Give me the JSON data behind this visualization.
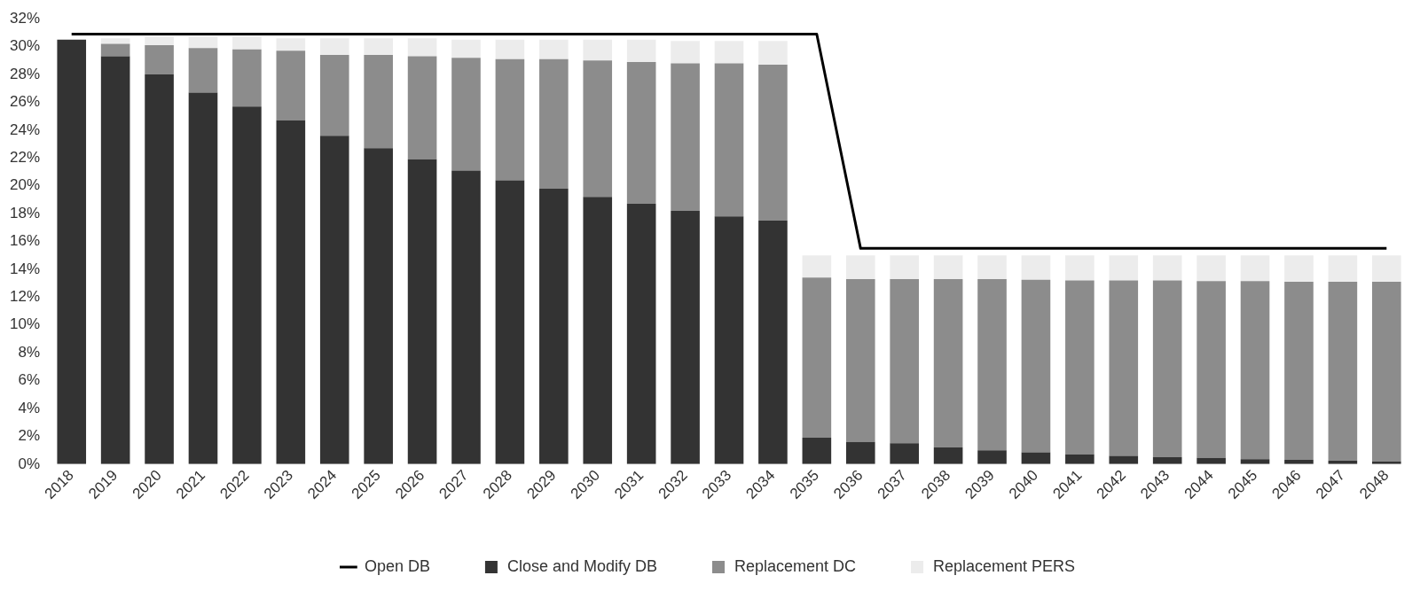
{
  "chart_data": {
    "type": "bar",
    "stacked": true,
    "categories": [
      "2018",
      "2019",
      "2020",
      "2021",
      "2022",
      "2023",
      "2024",
      "2025",
      "2026",
      "2027",
      "2028",
      "2029",
      "2030",
      "2031",
      "2032",
      "2033",
      "2034",
      "2035",
      "2036",
      "2037",
      "2038",
      "2039",
      "2040",
      "2041",
      "2042",
      "2043",
      "2044",
      "2045",
      "2046",
      "2047",
      "2048"
    ],
    "series": [
      {
        "name": "Close and Modify DB",
        "color": "#333333",
        "values": [
          30.5,
          29.3,
          28.0,
          26.7,
          25.7,
          24.7,
          23.6,
          22.7,
          21.9,
          21.1,
          20.4,
          19.8,
          19.2,
          18.7,
          18.2,
          17.8,
          17.5,
          1.9,
          1.6,
          1.5,
          1.2,
          1.0,
          0.85,
          0.7,
          0.6,
          0.5,
          0.45,
          0.35,
          0.3,
          0.25,
          0.2
        ]
      },
      {
        "name": "Replacement DC",
        "color": "#8c8c8c",
        "values": [
          0,
          0.9,
          2.1,
          3.2,
          4.1,
          5.0,
          5.8,
          6.7,
          7.4,
          8.1,
          8.7,
          9.3,
          9.8,
          10.2,
          10.6,
          11.0,
          11.2,
          11.5,
          11.7,
          11.8,
          12.1,
          12.3,
          12.4,
          12.5,
          12.6,
          12.7,
          12.7,
          12.8,
          12.8,
          12.85,
          12.9
        ]
      },
      {
        "name": "Replacement PERS",
        "color": "#ececec",
        "values": [
          0,
          0.4,
          0.6,
          0.8,
          0.9,
          0.9,
          1.2,
          1.2,
          1.3,
          1.3,
          1.4,
          1.4,
          1.5,
          1.6,
          1.6,
          1.6,
          1.7,
          1.6,
          1.7,
          1.7,
          1.7,
          1.7,
          1.75,
          1.8,
          1.8,
          1.8,
          1.85,
          1.85,
          1.9,
          1.9,
          1.9
        ]
      },
      {
        "name": "Open DB",
        "type": "line",
        "color": "#000000",
        "values": [
          30.9,
          30.9,
          30.9,
          30.9,
          30.9,
          30.9,
          30.9,
          30.9,
          30.9,
          30.9,
          30.9,
          30.9,
          30.9,
          30.9,
          30.9,
          30.9,
          30.9,
          30.9,
          15.5,
          15.5,
          15.5,
          15.5,
          15.5,
          15.5,
          15.5,
          15.5,
          15.5,
          15.5,
          15.5,
          15.5,
          15.5
        ]
      }
    ],
    "ylim": [
      0,
      32
    ],
    "yticks": [
      {
        "value": 0,
        "label": "0%"
      },
      {
        "value": 2,
        "label": "2%"
      },
      {
        "value": 4,
        "label": "4%"
      },
      {
        "value": 6,
        "label": "6%"
      },
      {
        "value": 8,
        "label": "8%"
      },
      {
        "value": 10,
        "label": "10%"
      },
      {
        "value": 12,
        "label": "12%"
      },
      {
        "value": 14,
        "label": "14%"
      },
      {
        "value": 16,
        "label": "16%"
      },
      {
        "value": 18,
        "label": "18%"
      },
      {
        "value": 20,
        "label": "20%"
      },
      {
        "value": 22,
        "label": "22%"
      },
      {
        "value": 24,
        "label": "24%"
      },
      {
        "value": 26,
        "label": "26%"
      },
      {
        "value": 28,
        "label": "28%"
      },
      {
        "value": 30,
        "label": "30%"
      },
      {
        "value": 32,
        "label": "32%"
      }
    ],
    "legend": "bottom",
    "marker": "none",
    "line_style": "solid"
  }
}
